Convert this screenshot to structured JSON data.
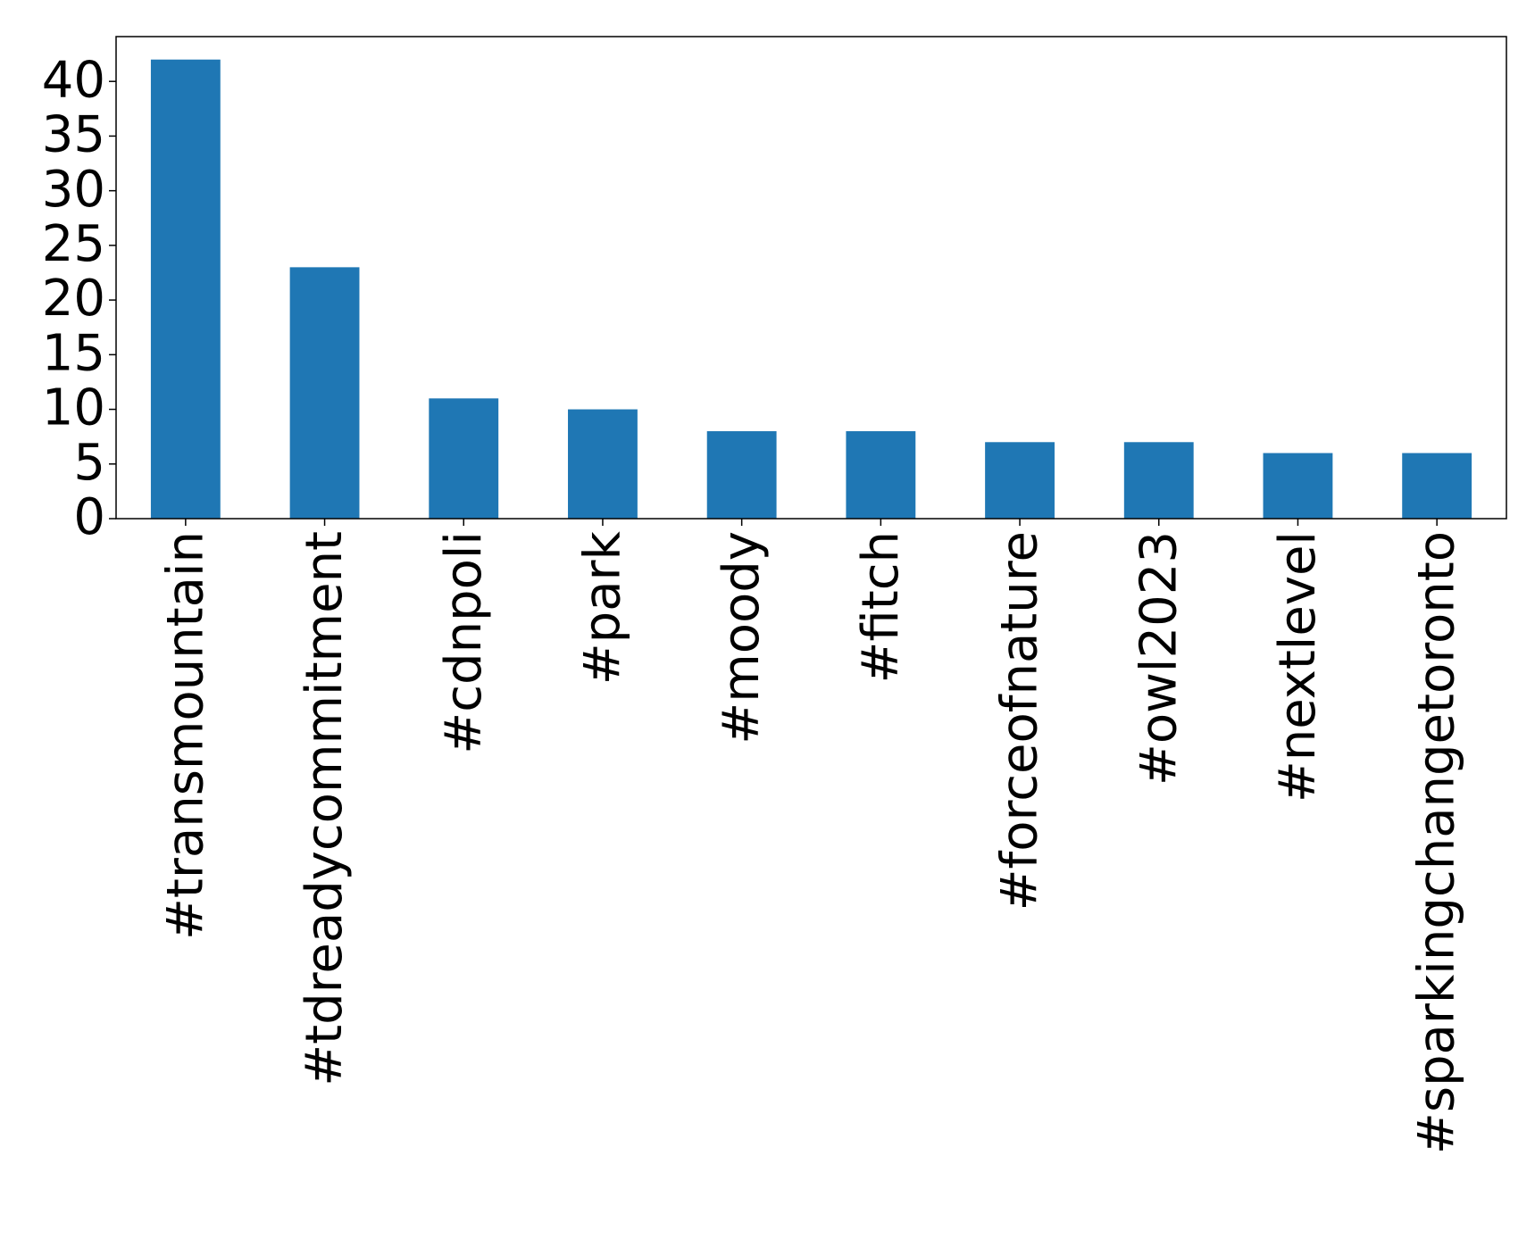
{
  "chart_data": {
    "type": "bar",
    "categories": [
      "#transmountain",
      "#tdreadycommitment",
      "#cdnpoli",
      "#park",
      "#moody",
      "#fitch",
      "#forceofnature",
      "#owl2023",
      "#nextlevel",
      "#sparkingchangetoronto"
    ],
    "values": [
      42,
      23,
      11,
      10,
      8,
      8,
      7,
      7,
      6,
      6
    ],
    "color": "#1f77b4",
    "ylim": [
      0,
      44.1
    ],
    "yticks": [
      0,
      5,
      10,
      15,
      20,
      25,
      30,
      35,
      40
    ],
    "grid": false
  }
}
